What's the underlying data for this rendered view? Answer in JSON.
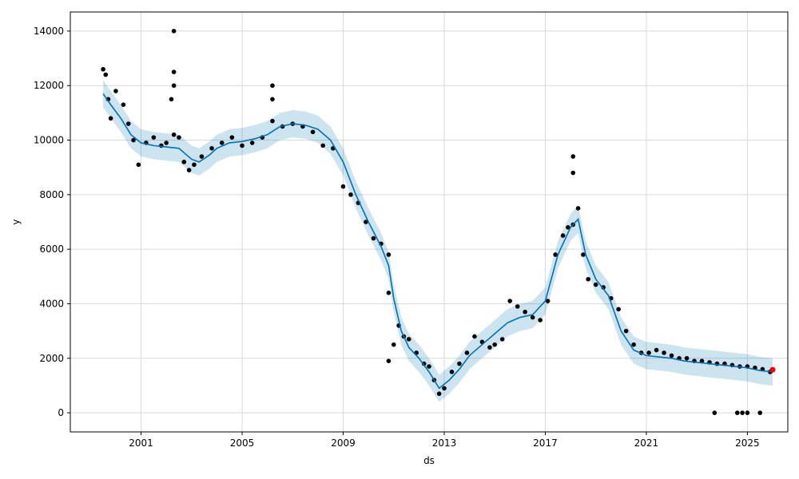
{
  "chart_data": {
    "type": "line",
    "title": "",
    "xlabel": "ds",
    "ylabel": "y",
    "xlim": [
      1998.2,
      2026.6
    ],
    "ylim": [
      -700,
      14700
    ],
    "x_tick_labels": [
      "2001",
      "2005",
      "2009",
      "2013",
      "2017",
      "2021",
      "2025"
    ],
    "x_ticks": [
      2001,
      2005,
      2009,
      2013,
      2017,
      2021,
      2025
    ],
    "y_ticks": [
      0,
      2000,
      4000,
      6000,
      8000,
      10000,
      12000,
      14000
    ],
    "y_tick_labels": [
      "0",
      "2000",
      "4000",
      "6000",
      "8000",
      "10000",
      "12000",
      "14000"
    ],
    "grid": true,
    "colors": {
      "forecast": "#0072B2",
      "interval": "#0072B2",
      "observed": "#000000",
      "highlight": "#ff0000",
      "grid": "#d9d9d9"
    },
    "series": [
      {
        "kind": "forecast",
        "x": [
          1999.5,
          1999.8,
          2000.2,
          2000.6,
          2001.0,
          2001.5,
          2002.0,
          2002.5,
          2003.0,
          2003.3,
          2003.7,
          2004.0,
          2004.5,
          2005.0,
          2005.5,
          2006.0,
          2006.5,
          2007.0,
          2007.5,
          2008.0,
          2008.5,
          2009.0,
          2009.5,
          2010.0,
          2010.5,
          2010.8,
          2011.0,
          2011.3,
          2011.6,
          2012.0,
          2012.4,
          2012.8,
          2013.2,
          2013.6,
          2014.0,
          2014.5,
          2015.0,
          2015.5,
          2016.0,
          2016.5,
          2017.0,
          2017.5,
          2018.0,
          2018.3,
          2018.6,
          2019.0,
          2019.5,
          2020.0,
          2020.5,
          2021.0,
          2021.5,
          2022.0,
          2022.5,
          2023.0,
          2023.5,
          2024.0,
          2024.5,
          2025.0,
          2025.5,
          2026.0
        ],
        "y": [
          11700,
          11300,
          10800,
          10200,
          9900,
          9800,
          9750,
          9700,
          9300,
          9200,
          9450,
          9700,
          9900,
          9950,
          10050,
          10200,
          10500,
          10600,
          10550,
          10400,
          10000,
          9200,
          8000,
          7000,
          6100,
          5400,
          4200,
          3000,
          2400,
          2000,
          1500,
          900,
          1200,
          1600,
          2100,
          2500,
          2900,
          3300,
          3500,
          3600,
          4100,
          5800,
          6800,
          7100,
          5800,
          4900,
          4300,
          3000,
          2300,
          2100,
          2050,
          2000,
          1900,
          1850,
          1800,
          1750,
          1700,
          1650,
          1550,
          1500
        ]
      }
    ],
    "interval": {
      "lower_offset": 500,
      "upper_offset": 500
    },
    "observed_points": {
      "x": [
        1999.5,
        1999.6,
        1999.7,
        1999.8,
        2000.0,
        2000.3,
        2000.5,
        2000.7,
        2000.9,
        2001.2,
        2001.5,
        2001.8,
        2002.0,
        2002.3,
        2002.5,
        2002.7,
        2002.9,
        2003.1,
        2003.4,
        2003.8,
        2004.2,
        2004.6,
        2005.0,
        2005.4,
        2005.8,
        2006.2,
        2006.6,
        2007.0,
        2007.4,
        2007.8,
        2008.2,
        2008.6,
        2009.0,
        2009.3,
        2009.6,
        2009.9,
        2010.2,
        2010.5,
        2010.8,
        2011.0,
        2011.2,
        2011.4,
        2011.6,
        2011.9,
        2012.2,
        2012.4,
        2012.6,
        2012.8,
        2013.0,
        2013.3,
        2013.6,
        2013.9,
        2014.2,
        2014.5,
        2014.8,
        2015.0,
        2015.3,
        2015.6,
        2015.9,
        2016.2,
        2016.5,
        2016.8,
        2017.1,
        2017.4,
        2017.7,
        2017.9,
        2018.1,
        2018.3,
        2018.5,
        2018.7,
        2019.0,
        2019.3,
        2019.6,
        2019.9,
        2020.2,
        2020.5,
        2020.8,
        2021.1,
        2021.4,
        2021.7,
        2022.0,
        2022.3,
        2022.6,
        2022.9,
        2023.2,
        2023.5,
        2023.8,
        2024.1,
        2024.4,
        2024.7,
        2025.0,
        2025.3,
        2025.6,
        2025.9,
        2002.3,
        2002.3,
        2002.3,
        2002.2,
        2006.2,
        2006.2,
        2018.1,
        2018.1,
        2010.8,
        2010.8,
        2023.7,
        2024.6,
        2024.8,
        2025.0,
        2025.5
      ],
      "y": [
        12600,
        12400,
        11500,
        10800,
        11800,
        11300,
        10600,
        10000,
        9100,
        9900,
        10100,
        9800,
        9900,
        10200,
        10100,
        9200,
        8900,
        9100,
        9400,
        9700,
        9900,
        10100,
        9800,
        9900,
        10100,
        10700,
        10500,
        10600,
        10500,
        10300,
        9800,
        9700,
        8300,
        8000,
        7700,
        7000,
        6400,
        6200,
        5800,
        2500,
        3200,
        2800,
        2700,
        2200,
        1800,
        1700,
        1200,
        700,
        900,
        1500,
        1800,
        2200,
        2800,
        2600,
        2400,
        2500,
        2700,
        4100,
        3900,
        3700,
        3500,
        3400,
        4100,
        5800,
        6500,
        6800,
        6900,
        7500,
        5800,
        4900,
        4700,
        4600,
        4200,
        3800,
        3000,
        2500,
        2200,
        2200,
        2300,
        2200,
        2100,
        2000,
        2000,
        1900,
        1900,
        1850,
        1800,
        1800,
        1750,
        1700,
        1700,
        1650,
        1600,
        1500,
        14000,
        12500,
        12000,
        11500,
        12000,
        11500,
        9400,
        8800,
        4400,
        1900,
        0,
        0,
        0,
        0,
        0
      ]
    },
    "highlight_points": {
      "x": [
        2026.0
      ],
      "y": [
        1580
      ]
    }
  }
}
